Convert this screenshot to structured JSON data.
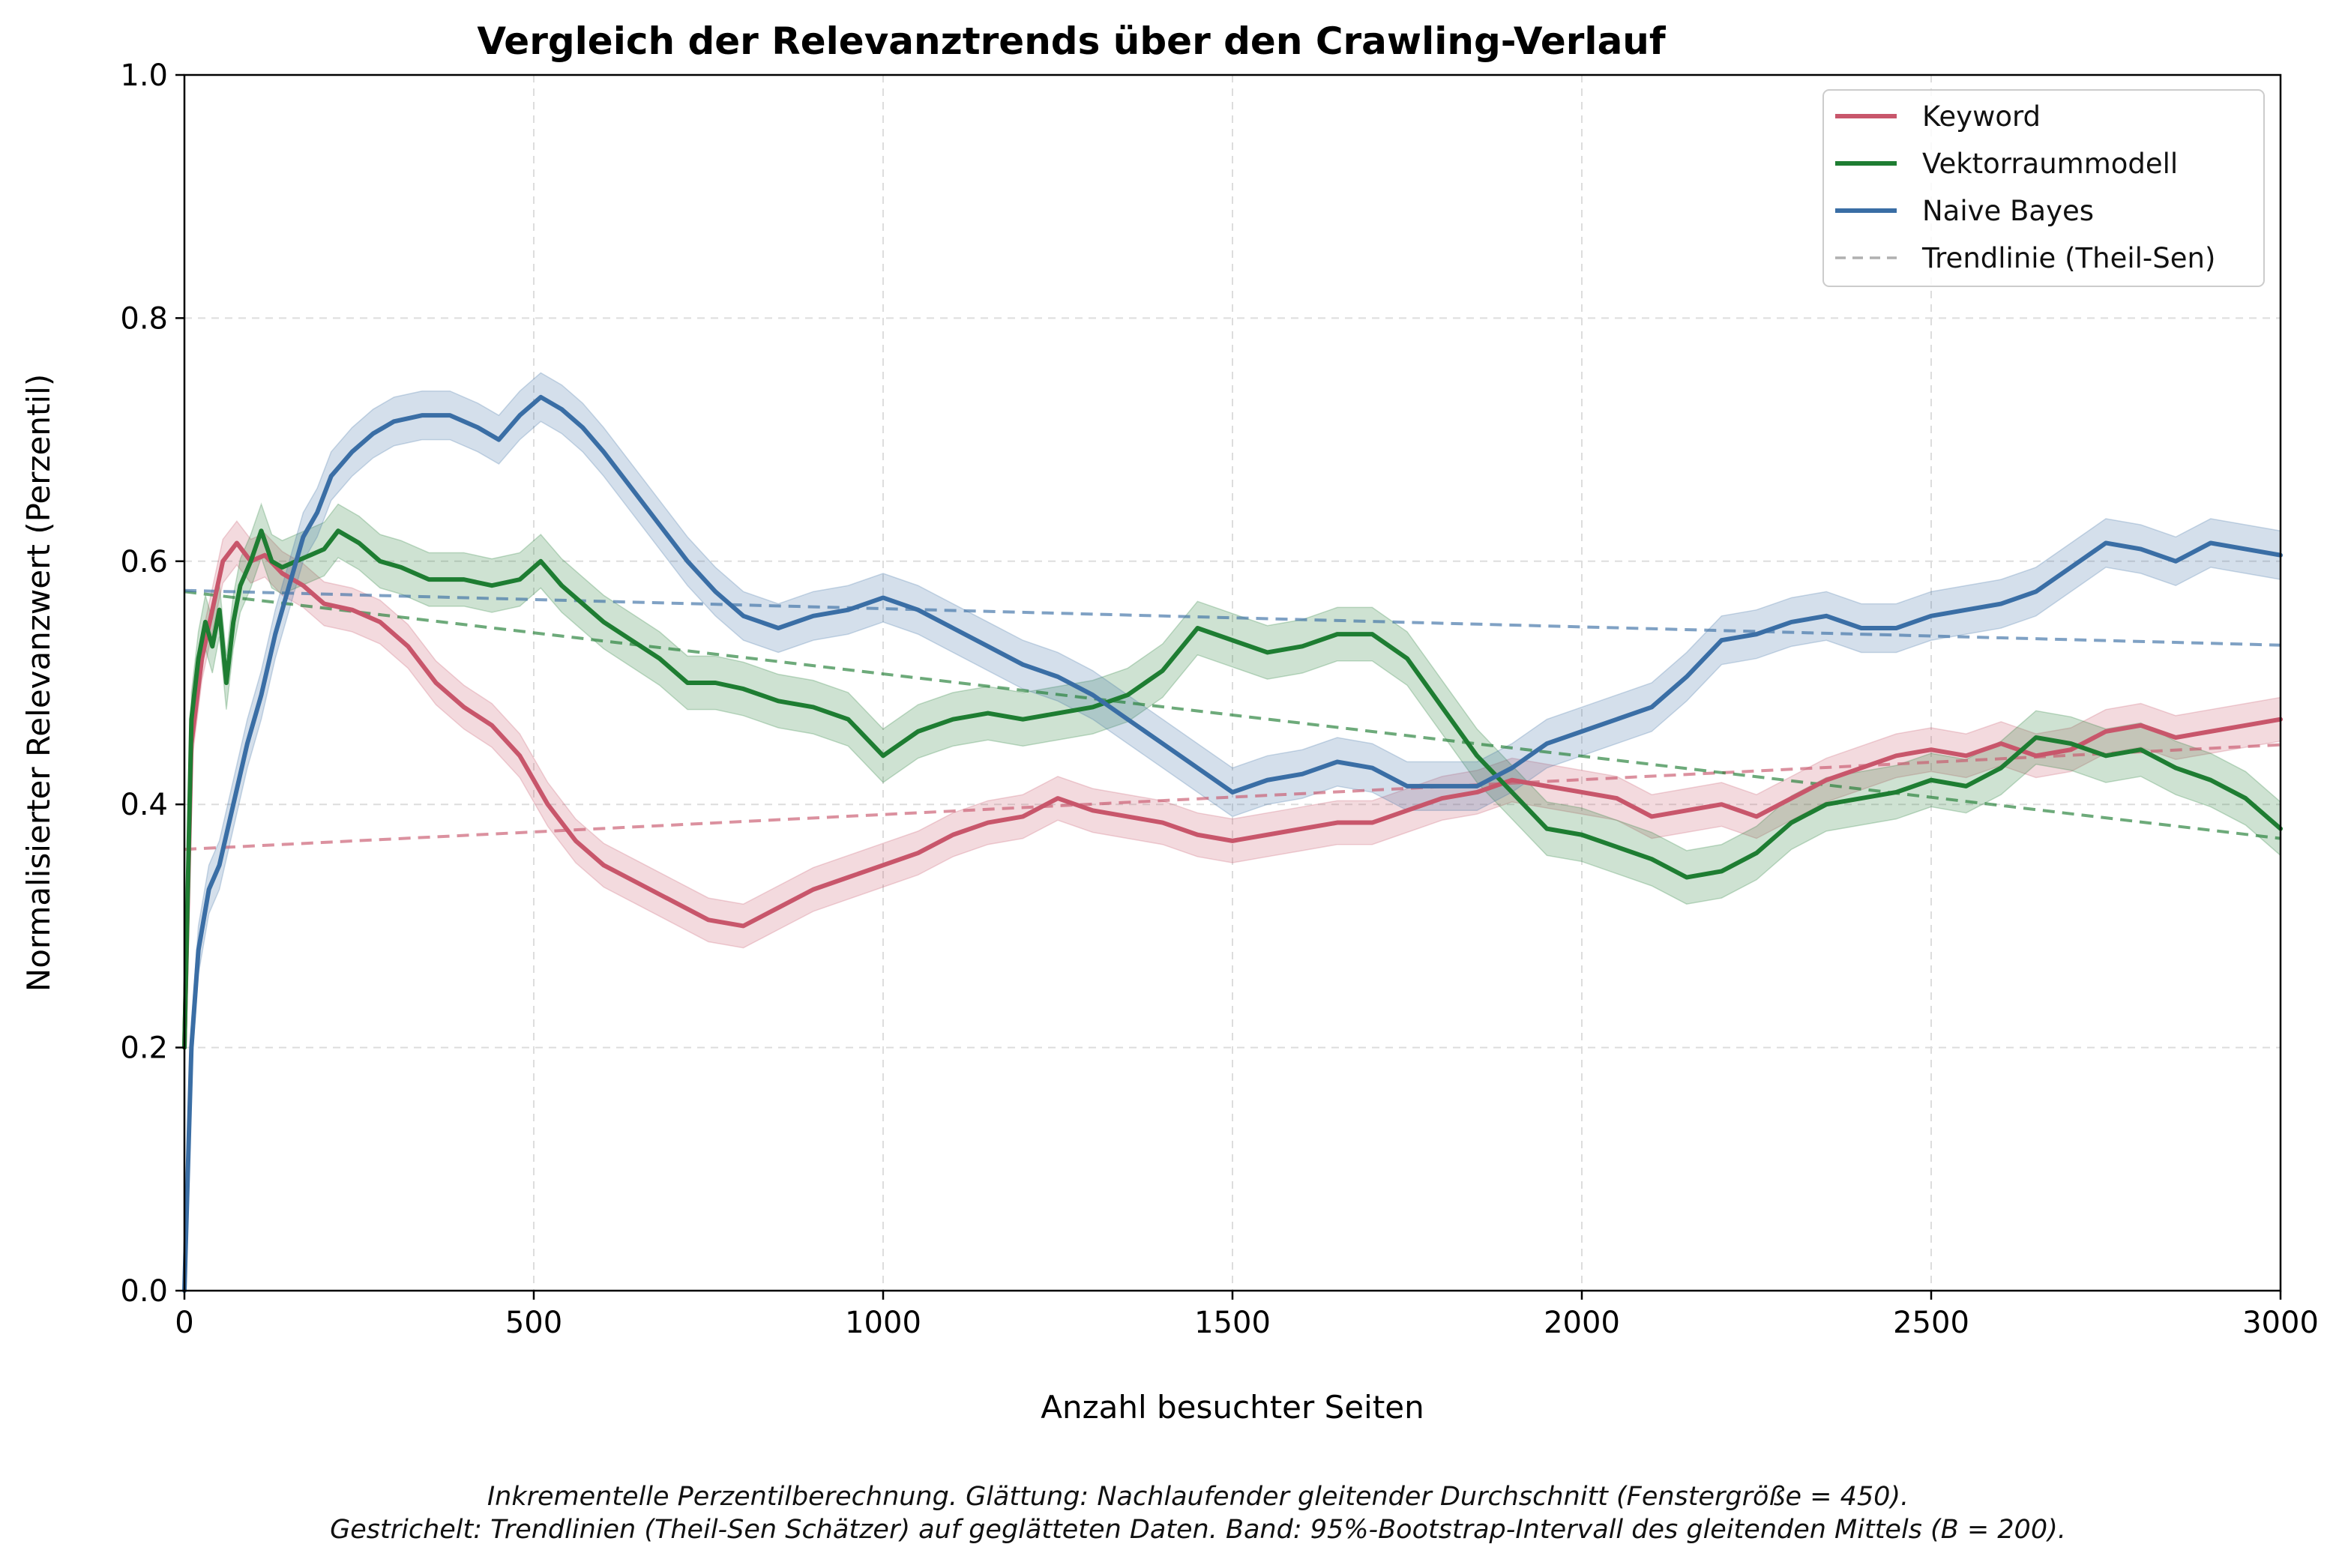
{
  "chart_data": {
    "type": "line",
    "title": "Vergleich der Relevanztrends über den Crawling-Verlauf",
    "xlabel": "Anzahl besuchter Seiten",
    "ylabel": "Normalisierter Relevanzwert (Perzentil)",
    "xlim": [
      0,
      3000
    ],
    "ylim": [
      0.0,
      1.0
    ],
    "x_ticks": [
      0,
      500,
      1000,
      1500,
      2000,
      2500,
      3000
    ],
    "y_ticks": [
      0.0,
      0.2,
      0.4,
      0.6,
      0.8,
      1.0
    ],
    "x_tick_labels": [
      "0",
      "500",
      "1000",
      "1500",
      "2000",
      "2500",
      "3000"
    ],
    "y_tick_labels": [
      "0.0",
      "0.2",
      "0.4",
      "0.6",
      "0.8",
      "1.0"
    ],
    "grid": true,
    "legend_position": "top-right",
    "series": [
      {
        "name": "Keyword",
        "color": "#c8566b",
        "x": [
          0,
          10,
          25,
          40,
          55,
          75,
          95,
          115,
          140,
          170,
          200,
          240,
          280,
          320,
          360,
          400,
          440,
          480,
          520,
          560,
          600,
          650,
          700,
          750,
          800,
          850,
          900,
          950,
          1000,
          1050,
          1100,
          1150,
          1200,
          1250,
          1300,
          1350,
          1400,
          1450,
          1500,
          1550,
          1600,
          1650,
          1700,
          1750,
          1800,
          1850,
          1900,
          1950,
          2000,
          2050,
          2100,
          2150,
          2200,
          2250,
          2300,
          2350,
          2400,
          2450,
          2500,
          2550,
          2600,
          2650,
          2700,
          2750,
          2800,
          2850,
          2900,
          2950,
          3000
        ],
        "y": [
          0.2,
          0.45,
          0.52,
          0.56,
          0.6,
          0.615,
          0.6,
          0.605,
          0.59,
          0.58,
          0.565,
          0.56,
          0.55,
          0.53,
          0.5,
          0.48,
          0.465,
          0.44,
          0.4,
          0.37,
          0.35,
          0.335,
          0.32,
          0.305,
          0.3,
          0.315,
          0.33,
          0.34,
          0.35,
          0.36,
          0.375,
          0.385,
          0.39,
          0.405,
          0.395,
          0.39,
          0.385,
          0.375,
          0.37,
          0.375,
          0.38,
          0.385,
          0.385,
          0.395,
          0.405,
          0.41,
          0.42,
          0.415,
          0.41,
          0.405,
          0.39,
          0.395,
          0.4,
          0.39,
          0.405,
          0.42,
          0.43,
          0.44,
          0.445,
          0.44,
          0.45,
          0.44,
          0.445,
          0.46,
          0.465,
          0.455,
          0.46,
          0.465,
          0.47
        ],
        "band_halfwidth": 0.018,
        "trend": [
          [
            0,
            0.363
          ],
          [
            3000,
            0.449
          ]
        ]
      },
      {
        "name": "Vektorraummodell",
        "color": "#1e7d32",
        "x": [
          0,
          10,
          20,
          30,
          40,
          50,
          60,
          70,
          80,
          95,
          110,
          125,
          140,
          160,
          180,
          200,
          220,
          250,
          280,
          310,
          350,
          400,
          440,
          480,
          510,
          540,
          570,
          600,
          640,
          680,
          720,
          760,
          800,
          850,
          900,
          950,
          1000,
          1050,
          1100,
          1150,
          1200,
          1250,
          1300,
          1350,
          1400,
          1450,
          1500,
          1550,
          1600,
          1650,
          1700,
          1750,
          1800,
          1850,
          1900,
          1950,
          2000,
          2050,
          2100,
          2150,
          2200,
          2250,
          2300,
          2350,
          2400,
          2450,
          2500,
          2550,
          2600,
          2650,
          2700,
          2750,
          2800,
          2850,
          2900,
          2950,
          3000
        ],
        "y": [
          0.2,
          0.47,
          0.52,
          0.55,
          0.53,
          0.56,
          0.5,
          0.55,
          0.58,
          0.6,
          0.625,
          0.6,
          0.595,
          0.6,
          0.605,
          0.61,
          0.625,
          0.615,
          0.6,
          0.595,
          0.585,
          0.585,
          0.58,
          0.585,
          0.6,
          0.58,
          0.565,
          0.55,
          0.535,
          0.52,
          0.5,
          0.5,
          0.495,
          0.485,
          0.48,
          0.47,
          0.44,
          0.46,
          0.47,
          0.475,
          0.47,
          0.475,
          0.48,
          0.49,
          0.51,
          0.545,
          0.535,
          0.525,
          0.53,
          0.54,
          0.54,
          0.52,
          0.48,
          0.44,
          0.41,
          0.38,
          0.375,
          0.365,
          0.355,
          0.34,
          0.345,
          0.36,
          0.385,
          0.4,
          0.405,
          0.41,
          0.42,
          0.415,
          0.43,
          0.455,
          0.45,
          0.44,
          0.445,
          0.43,
          0.42,
          0.405,
          0.38
        ],
        "band_halfwidth": 0.022,
        "trend": [
          [
            0,
            0.575
          ],
          [
            3000,
            0.372
          ]
        ]
      },
      {
        "name": "Naive Bayes",
        "color": "#3a6ea5",
        "x": [
          0,
          10,
          20,
          35,
          50,
          70,
          90,
          110,
          130,
          150,
          170,
          190,
          210,
          240,
          270,
          300,
          340,
          380,
          420,
          450,
          480,
          510,
          540,
          570,
          600,
          640,
          680,
          720,
          760,
          800,
          850,
          900,
          950,
          1000,
          1050,
          1100,
          1150,
          1200,
          1250,
          1300,
          1350,
          1400,
          1450,
          1500,
          1550,
          1600,
          1650,
          1700,
          1750,
          1800,
          1850,
          1900,
          1950,
          2000,
          2050,
          2100,
          2150,
          2200,
          2250,
          2300,
          2350,
          2400,
          2450,
          2500,
          2550,
          2600,
          2650,
          2700,
          2750,
          2800,
          2850,
          2900,
          2950,
          3000
        ],
        "y": [
          0.0,
          0.2,
          0.28,
          0.33,
          0.35,
          0.4,
          0.45,
          0.49,
          0.54,
          0.58,
          0.62,
          0.64,
          0.67,
          0.69,
          0.705,
          0.715,
          0.72,
          0.72,
          0.71,
          0.7,
          0.72,
          0.735,
          0.725,
          0.71,
          0.69,
          0.66,
          0.63,
          0.6,
          0.575,
          0.555,
          0.545,
          0.555,
          0.56,
          0.57,
          0.56,
          0.545,
          0.53,
          0.515,
          0.505,
          0.49,
          0.47,
          0.45,
          0.43,
          0.41,
          0.42,
          0.425,
          0.435,
          0.43,
          0.415,
          0.415,
          0.415,
          0.43,
          0.45,
          0.46,
          0.47,
          0.48,
          0.505,
          0.535,
          0.54,
          0.55,
          0.555,
          0.545,
          0.545,
          0.555,
          0.56,
          0.565,
          0.575,
          0.595,
          0.615,
          0.61,
          0.6,
          0.615,
          0.61,
          0.605
        ],
        "band_halfwidth": 0.02,
        "trend": [
          [
            0,
            0.576
          ],
          [
            3000,
            0.531
          ]
        ]
      }
    ],
    "legend": [
      {
        "label": "Keyword",
        "color": "#c8566b",
        "style": "solid"
      },
      {
        "label": "Vektorraummodell",
        "color": "#1e7d32",
        "style": "solid"
      },
      {
        "label": "Naive Bayes",
        "color": "#3a6ea5",
        "style": "solid"
      },
      {
        "label": "Trendlinie (Theil-Sen)",
        "color": "#b0b0b0",
        "style": "dashed"
      }
    ],
    "caption": [
      "Inkrementelle Perzentilberechnung. Glättung: Nachlaufender gleitender Durchschnitt (Fenstergröße = 450).",
      "Gestrichelt: Trendlinien (Theil-Sen Schätzer) auf geglätteten Daten. Band: 95%-Bootstrap-Intervall des gleitenden Mittels (B = 200)."
    ]
  }
}
